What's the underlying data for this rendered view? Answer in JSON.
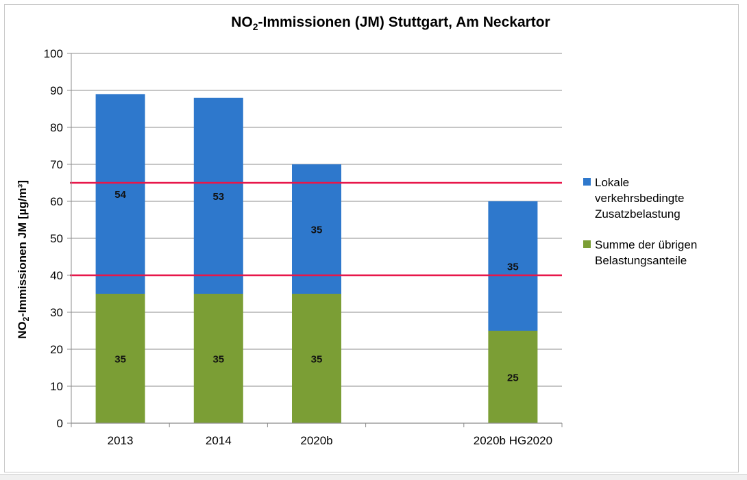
{
  "title_prefix": "NO",
  "title_sub": "2",
  "title_rest": "-Immissionen (JM) Stuttgart, Am Neckartor",
  "ylabel_prefix": "NO",
  "ylabel_sub": "2",
  "ylabel_rest": "-Immissionen JM [µg/m³]",
  "legend": [
    {
      "lines": [
        "Lokale",
        "verkehrsbedingte",
        "Zusatzbelastung"
      ],
      "color": "#2e78cc"
    },
    {
      "lines": [
        "Summe der übrigen",
        "Belastungsanteile"
      ],
      "color": "#7b9e35"
    }
  ],
  "chart_data": {
    "type": "bar",
    "stacked": true,
    "categories": [
      "2013",
      "2014",
      "2020b",
      "",
      "2020b HG2020"
    ],
    "series": [
      {
        "name": "Summe der übrigen Belastungsanteile",
        "color": "#7b9e35",
        "values": [
          35,
          35,
          35,
          null,
          25
        ],
        "labels": [
          "35",
          "35",
          "35",
          "",
          "25"
        ]
      },
      {
        "name": "Lokale verkehrsbedingte Zusatzbelastung",
        "color": "#2e78cc",
        "values": [
          54,
          53,
          35,
          null,
          35
        ],
        "labels": [
          "54",
          "53",
          "35",
          "",
          "35"
        ]
      }
    ],
    "reference_lines": [
      {
        "value": 65,
        "color": "#e8174a"
      },
      {
        "value": 40,
        "color": "#e8174a"
      }
    ],
    "ylim": [
      0,
      100
    ],
    "yticks": [
      0,
      10,
      20,
      30,
      40,
      50,
      60,
      70,
      80,
      90,
      100
    ],
    "grid": true,
    "legend_position": "right"
  }
}
